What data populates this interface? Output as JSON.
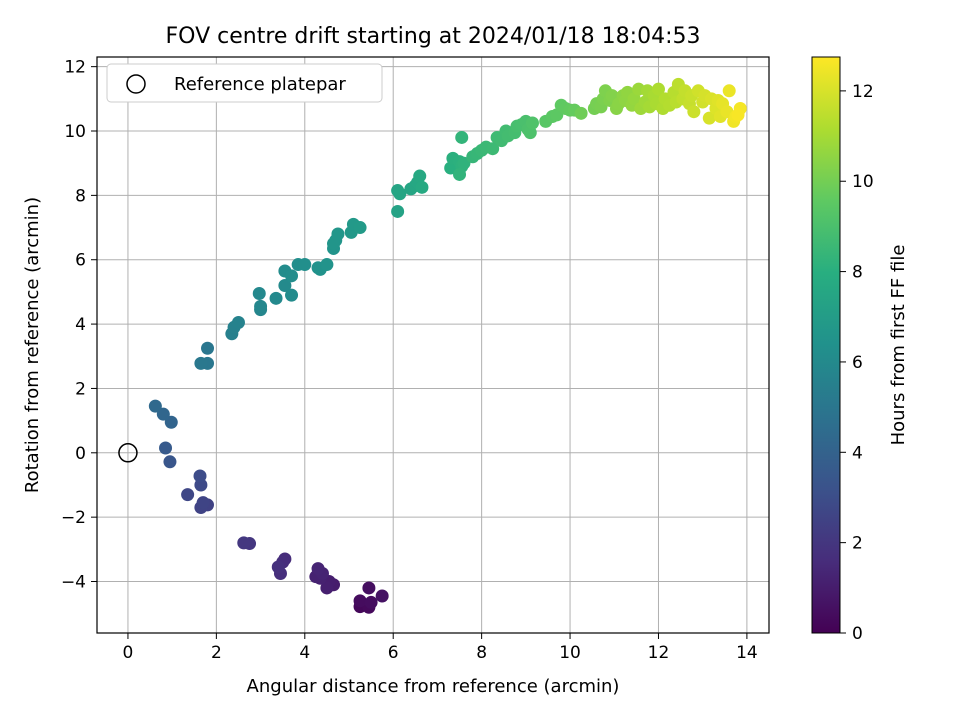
{
  "chart_data": {
    "type": "scatter",
    "title": "FOV centre drift starting at 2024/01/18 18:04:53",
    "xlabel": "Angular distance from reference (arcmin)",
    "ylabel": "Rotation from reference (arcmin)",
    "colorbar_label": "Hours from first FF file",
    "xlim": [
      -0.7,
      14.5
    ],
    "ylim": [
      -5.6,
      12.3
    ],
    "clim": [
      0,
      12.75
    ],
    "xticks": [
      0,
      2,
      4,
      6,
      8,
      10,
      12,
      14
    ],
    "yticks": [
      -4,
      -2,
      0,
      2,
      4,
      6,
      8,
      10,
      12
    ],
    "cticks": [
      0,
      2,
      4,
      6,
      8,
      10,
      12
    ],
    "xtick_labels": [
      "0",
      "2",
      "4",
      "6",
      "8",
      "10",
      "12",
      "14"
    ],
    "ytick_labels": [
      "−4",
      "−2",
      "0",
      "2",
      "4",
      "6",
      "8",
      "10",
      "12"
    ],
    "ctick_labels": [
      "0",
      "2",
      "4",
      "6",
      "8",
      "10",
      "12"
    ],
    "grid": true,
    "legend": {
      "position": "top-left",
      "entries": [
        "Reference platepar"
      ]
    },
    "colormap": "viridis",
    "reference_point": {
      "x": 0,
      "y": 0
    },
    "points": [
      {
        "x": 5.25,
        "y": -4.78,
        "h": 0.2
      },
      {
        "x": 5.45,
        "y": -4.8,
        "h": 0.3
      },
      {
        "x": 5.25,
        "y": -4.6,
        "h": 0.4
      },
      {
        "x": 5.5,
        "y": -4.65,
        "h": 0.45
      },
      {
        "x": 5.45,
        "y": -4.2,
        "h": 0.5
      },
      {
        "x": 5.75,
        "y": -4.45,
        "h": 0.6
      },
      {
        "x": 4.65,
        "y": -4.1,
        "h": 1.0
      },
      {
        "x": 4.55,
        "y": -4.0,
        "h": 1.05
      },
      {
        "x": 4.5,
        "y": -4.2,
        "h": 1.1
      },
      {
        "x": 4.35,
        "y": -3.9,
        "h": 1.15
      },
      {
        "x": 4.25,
        "y": -3.85,
        "h": 1.2
      },
      {
        "x": 4.4,
        "y": -3.75,
        "h": 1.25
      },
      {
        "x": 4.3,
        "y": -3.6,
        "h": 1.3
      },
      {
        "x": 3.55,
        "y": -3.3,
        "h": 1.6
      },
      {
        "x": 3.5,
        "y": -3.4,
        "h": 1.65
      },
      {
        "x": 3.45,
        "y": -3.75,
        "h": 1.7
      },
      {
        "x": 3.4,
        "y": -3.55,
        "h": 1.75
      },
      {
        "x": 2.75,
        "y": -2.82,
        "h": 2.0
      },
      {
        "x": 2.62,
        "y": -2.8,
        "h": 2.05
      },
      {
        "x": 1.8,
        "y": -1.62,
        "h": 2.5
      },
      {
        "x": 1.65,
        "y": -1.7,
        "h": 2.55
      },
      {
        "x": 1.7,
        "y": -1.55,
        "h": 2.6
      },
      {
        "x": 1.35,
        "y": -1.3,
        "h": 2.7
      },
      {
        "x": 1.65,
        "y": -1.0,
        "h": 2.85
      },
      {
        "x": 1.63,
        "y": -0.72,
        "h": 2.95
      },
      {
        "x": 0.95,
        "y": -0.28,
        "h": 3.4
      },
      {
        "x": 0.85,
        "y": 0.15,
        "h": 3.6
      },
      {
        "x": 0.98,
        "y": 0.95,
        "h": 4.1
      },
      {
        "x": 0.8,
        "y": 1.2,
        "h": 4.2
      },
      {
        "x": 0.62,
        "y": 1.45,
        "h": 4.35
      },
      {
        "x": 1.8,
        "y": 3.25,
        "h": 5.0
      },
      {
        "x": 1.8,
        "y": 2.78,
        "h": 5.05
      },
      {
        "x": 1.65,
        "y": 2.78,
        "h": 5.1
      },
      {
        "x": 2.35,
        "y": 3.7,
        "h": 5.5
      },
      {
        "x": 2.4,
        "y": 3.9,
        "h": 5.55
      },
      {
        "x": 2.5,
        "y": 4.05,
        "h": 5.6
      },
      {
        "x": 3.0,
        "y": 4.45,
        "h": 5.8
      },
      {
        "x": 3.0,
        "y": 4.55,
        "h": 5.85
      },
      {
        "x": 2.97,
        "y": 4.95,
        "h": 5.9
      },
      {
        "x": 3.35,
        "y": 4.8,
        "h": 5.95
      },
      {
        "x": 3.55,
        "y": 5.2,
        "h": 6.0
      },
      {
        "x": 3.7,
        "y": 4.9,
        "h": 6.05
      },
      {
        "x": 3.55,
        "y": 5.65,
        "h": 6.1
      },
      {
        "x": 3.7,
        "y": 5.5,
        "h": 6.15
      },
      {
        "x": 3.85,
        "y": 5.85,
        "h": 6.2
      },
      {
        "x": 4.0,
        "y": 5.85,
        "h": 6.25
      },
      {
        "x": 4.3,
        "y": 5.75,
        "h": 6.4
      },
      {
        "x": 4.35,
        "y": 5.7,
        "h": 6.45
      },
      {
        "x": 4.5,
        "y": 5.85,
        "h": 6.5
      },
      {
        "x": 4.65,
        "y": 6.35,
        "h": 6.55
      },
      {
        "x": 4.7,
        "y": 6.6,
        "h": 6.6
      },
      {
        "x": 4.65,
        "y": 6.5,
        "h": 6.62
      },
      {
        "x": 4.75,
        "y": 6.8,
        "h": 6.65
      },
      {
        "x": 5.05,
        "y": 6.85,
        "h": 6.75
      },
      {
        "x": 5.1,
        "y": 7.1,
        "h": 6.8
      },
      {
        "x": 5.25,
        "y": 7.0,
        "h": 6.85
      },
      {
        "x": 6.1,
        "y": 7.5,
        "h": 7.3
      },
      {
        "x": 6.1,
        "y": 8.15,
        "h": 7.4
      },
      {
        "x": 6.15,
        "y": 8.05,
        "h": 7.45
      },
      {
        "x": 6.4,
        "y": 8.2,
        "h": 7.5
      },
      {
        "x": 6.5,
        "y": 8.3,
        "h": 7.55
      },
      {
        "x": 6.55,
        "y": 8.4,
        "h": 7.6
      },
      {
        "x": 6.6,
        "y": 8.6,
        "h": 7.65
      },
      {
        "x": 6.65,
        "y": 8.25,
        "h": 7.7
      },
      {
        "x": 7.3,
        "y": 8.85,
        "h": 8.0
      },
      {
        "x": 7.35,
        "y": 9.15,
        "h": 8.05
      },
      {
        "x": 7.5,
        "y": 9.05,
        "h": 8.1
      },
      {
        "x": 7.55,
        "y": 8.9,
        "h": 8.15
      },
      {
        "x": 7.6,
        "y": 9.0,
        "h": 8.2
      },
      {
        "x": 7.5,
        "y": 8.65,
        "h": 8.25
      },
      {
        "x": 7.55,
        "y": 9.8,
        "h": 8.3
      },
      {
        "x": 7.8,
        "y": 9.2,
        "h": 8.4
      },
      {
        "x": 7.9,
        "y": 9.3,
        "h": 8.45
      },
      {
        "x": 8.0,
        "y": 9.4,
        "h": 8.5
      },
      {
        "x": 8.1,
        "y": 9.5,
        "h": 8.55
      },
      {
        "x": 8.25,
        "y": 9.45,
        "h": 8.6
      },
      {
        "x": 8.35,
        "y": 9.8,
        "h": 8.65
      },
      {
        "x": 8.45,
        "y": 9.7,
        "h": 8.7
      },
      {
        "x": 8.55,
        "y": 10.0,
        "h": 8.75
      },
      {
        "x": 8.6,
        "y": 9.85,
        "h": 8.8
      },
      {
        "x": 8.75,
        "y": 9.95,
        "h": 8.85
      },
      {
        "x": 8.8,
        "y": 10.15,
        "h": 8.9
      },
      {
        "x": 8.9,
        "y": 10.2,
        "h": 8.95
      },
      {
        "x": 9.0,
        "y": 10.3,
        "h": 9.0
      },
      {
        "x": 9.05,
        "y": 10.05,
        "h": 9.05
      },
      {
        "x": 9.1,
        "y": 9.95,
        "h": 9.1
      },
      {
        "x": 9.15,
        "y": 10.25,
        "h": 9.15
      },
      {
        "x": 9.45,
        "y": 10.3,
        "h": 9.4
      },
      {
        "x": 9.6,
        "y": 10.45,
        "h": 9.45
      },
      {
        "x": 9.7,
        "y": 10.5,
        "h": 9.5
      },
      {
        "x": 9.8,
        "y": 10.8,
        "h": 9.55
      },
      {
        "x": 9.9,
        "y": 10.7,
        "h": 9.6
      },
      {
        "x": 10.0,
        "y": 10.65,
        "h": 9.65
      },
      {
        "x": 10.1,
        "y": 10.65,
        "h": 9.7
      },
      {
        "x": 10.25,
        "y": 10.55,
        "h": 9.9
      },
      {
        "x": 10.55,
        "y": 10.7,
        "h": 10.0
      },
      {
        "x": 10.6,
        "y": 10.85,
        "h": 10.05
      },
      {
        "x": 10.7,
        "y": 10.75,
        "h": 10.1
      },
      {
        "x": 10.75,
        "y": 11.0,
        "h": 10.15
      },
      {
        "x": 10.8,
        "y": 11.25,
        "h": 10.2
      },
      {
        "x": 10.9,
        "y": 10.95,
        "h": 10.25
      },
      {
        "x": 10.95,
        "y": 11.1,
        "h": 10.3
      },
      {
        "x": 11.05,
        "y": 10.7,
        "h": 10.4
      },
      {
        "x": 11.1,
        "y": 10.85,
        "h": 10.45
      },
      {
        "x": 11.2,
        "y": 11.1,
        "h": 10.5
      },
      {
        "x": 11.25,
        "y": 10.95,
        "h": 10.55
      },
      {
        "x": 11.3,
        "y": 11.2,
        "h": 10.6
      },
      {
        "x": 11.4,
        "y": 10.8,
        "h": 10.65
      },
      {
        "x": 11.45,
        "y": 11.0,
        "h": 10.7
      },
      {
        "x": 11.55,
        "y": 11.3,
        "h": 10.8
      },
      {
        "x": 11.6,
        "y": 10.7,
        "h": 10.85
      },
      {
        "x": 11.7,
        "y": 10.9,
        "h": 10.9
      },
      {
        "x": 11.75,
        "y": 11.25,
        "h": 10.95
      },
      {
        "x": 11.8,
        "y": 10.75,
        "h": 11.0
      },
      {
        "x": 11.9,
        "y": 11.1,
        "h": 11.05
      },
      {
        "x": 11.95,
        "y": 10.85,
        "h": 11.1
      },
      {
        "x": 12.0,
        "y": 11.3,
        "h": 11.15
      },
      {
        "x": 12.1,
        "y": 10.7,
        "h": 11.2
      },
      {
        "x": 12.15,
        "y": 11.0,
        "h": 11.25
      },
      {
        "x": 12.25,
        "y": 10.8,
        "h": 11.3
      },
      {
        "x": 12.35,
        "y": 11.2,
        "h": 11.35
      },
      {
        "x": 12.4,
        "y": 10.9,
        "h": 11.4
      },
      {
        "x": 12.45,
        "y": 11.45,
        "h": 11.45
      },
      {
        "x": 12.55,
        "y": 11.0,
        "h": 11.55
      },
      {
        "x": 12.6,
        "y": 11.25,
        "h": 11.6
      },
      {
        "x": 12.7,
        "y": 10.85,
        "h": 11.65
      },
      {
        "x": 12.75,
        "y": 11.1,
        "h": 11.7
      },
      {
        "x": 12.8,
        "y": 10.6,
        "h": 11.75
      },
      {
        "x": 12.9,
        "y": 11.25,
        "h": 11.85
      },
      {
        "x": 13.0,
        "y": 10.9,
        "h": 11.9
      },
      {
        "x": 13.05,
        "y": 11.1,
        "h": 11.95
      },
      {
        "x": 13.15,
        "y": 10.4,
        "h": 12.0
      },
      {
        "x": 13.2,
        "y": 11.0,
        "h": 12.05
      },
      {
        "x": 13.3,
        "y": 10.7,
        "h": 12.1
      },
      {
        "x": 13.35,
        "y": 10.95,
        "h": 12.15
      },
      {
        "x": 13.4,
        "y": 10.45,
        "h": 12.2
      },
      {
        "x": 13.45,
        "y": 10.85,
        "h": 12.3
      },
      {
        "x": 13.55,
        "y": 10.6,
        "h": 12.35
      },
      {
        "x": 13.6,
        "y": 11.25,
        "h": 12.4
      },
      {
        "x": 13.7,
        "y": 10.3,
        "h": 12.5
      },
      {
        "x": 13.75,
        "y": 10.45,
        "h": 12.55
      },
      {
        "x": 13.85,
        "y": 10.7,
        "h": 12.6
      },
      {
        "x": 13.8,
        "y": 10.5,
        "h": 12.65
      }
    ]
  }
}
